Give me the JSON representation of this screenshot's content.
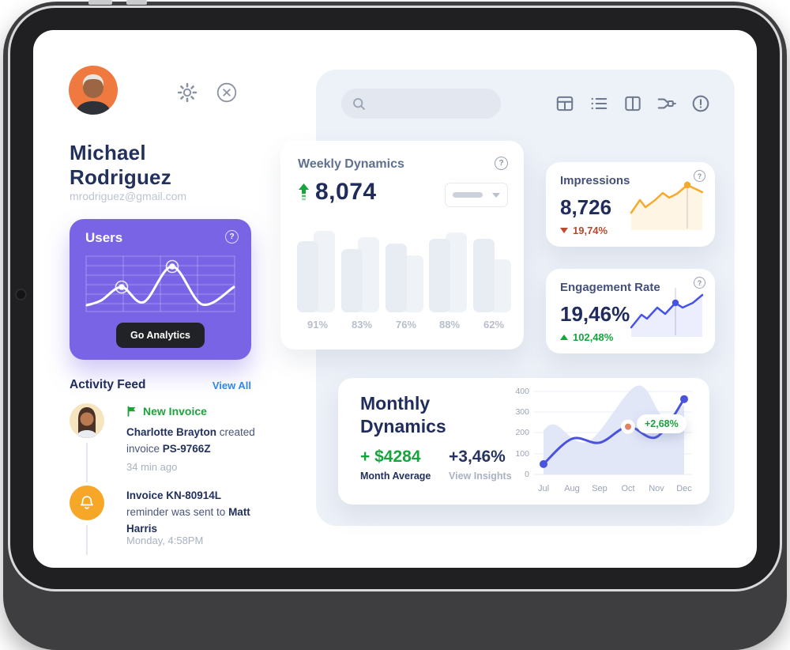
{
  "colors": {
    "accent_purple": "#7A64E6",
    "green": "#16A53C",
    "red": "#BC4B2F",
    "orange": "#F6A92C",
    "blue": "#4553E8",
    "navy": "#1F2C5C",
    "link_blue": "#2E86F0"
  },
  "icons": {
    "profile": [
      "settings",
      "close"
    ],
    "header": [
      "table-view",
      "list-view",
      "split-view",
      "flow-merge",
      "alerts"
    ],
    "search": "magnifier",
    "activity": [
      "flag",
      "bell"
    ]
  },
  "profile": {
    "name": "Michael Rodriguez",
    "email": "mrodriguez@gmail.com"
  },
  "search": {
    "value": "",
    "placeholder": ""
  },
  "users_card": {
    "title": "Users",
    "button_label": "Go Analytics",
    "chart_data": {
      "type": "line",
      "points": [
        [
          2,
          63
        ],
        [
          20,
          57
        ],
        [
          46,
          40
        ],
        [
          74,
          59
        ],
        [
          110,
          14
        ],
        [
          148,
          62
        ],
        [
          188,
          40
        ]
      ],
      "markers": [
        [
          46,
          40
        ],
        [
          110,
          14
        ]
      ],
      "grid": "on"
    }
  },
  "activity": {
    "title": "Activity Feed",
    "view_all": "View All",
    "items": [
      {
        "badge": "New Invoice",
        "seg1": "Charlotte Brayton",
        "seg2": " created invoice ",
        "seg3": "PS-9766Z",
        "time": "34 min ago"
      },
      {
        "seg1": "Invoice KN-80914L",
        "seg2": " reminder was sent to ",
        "seg3": "Matt Harris",
        "time": "Monday, 4:58PM"
      }
    ]
  },
  "weekly": {
    "title": "Weekly Dynamics",
    "value": "8,074",
    "trend": "up",
    "chart_data": {
      "type": "bar",
      "labels": [
        "91%",
        "83%",
        "76%",
        "88%",
        "62%"
      ],
      "front_heights": [
        90,
        80,
        87,
        93,
        93
      ],
      "back_heights": [
        103,
        95,
        72,
        101,
        67
      ]
    }
  },
  "impressions": {
    "title": "Impressions",
    "value": "8,726",
    "delta": "19,74%",
    "delta_dir": "down",
    "chart_data": {
      "type": "line",
      "color": "#F6A92C",
      "x": [
        2,
        13,
        20,
        31,
        42,
        50,
        60,
        73,
        92
      ],
      "y": [
        42,
        26,
        35,
        27,
        17,
        23,
        18,
        7,
        16
      ],
      "marker_index": 7
    }
  },
  "engagement": {
    "title": "Engagement Rate",
    "value": "19,46%",
    "delta": "102,48%",
    "delta_dir": "up",
    "chart_data": {
      "type": "line",
      "color": "#4553E8",
      "x": [
        2,
        15,
        22,
        35,
        45,
        58,
        67,
        80,
        92
      ],
      "y": [
        52,
        36,
        41,
        27,
        35,
        21,
        27,
        21,
        11
      ],
      "marker_index": 5
    }
  },
  "monthly": {
    "title": "Monthly Dynamics",
    "average_value": "+ $4284",
    "average_label": "Month Average",
    "percent_value": "+3,46%",
    "percent_label": "View Insights",
    "tooltip": "+2,68%",
    "chart_data": {
      "type": "area-line",
      "months": [
        "Jul",
        "Aug",
        "Sep",
        "Oct",
        "Nov",
        "Dec"
      ],
      "values": [
        50,
        172,
        153,
        230,
        180,
        363
      ],
      "highlight_month": "Oct",
      "y_ticks": [
        "400",
        "300",
        "200",
        "100",
        "0"
      ],
      "ylim": [
        0,
        400
      ],
      "grid": "on",
      "area_profile": [
        [
          12,
          58
        ],
        [
          27,
          51
        ],
        [
          69,
          72
        ],
        [
          130,
          2
        ],
        [
          163,
          40
        ],
        [
          190,
          26
        ]
      ]
    }
  }
}
